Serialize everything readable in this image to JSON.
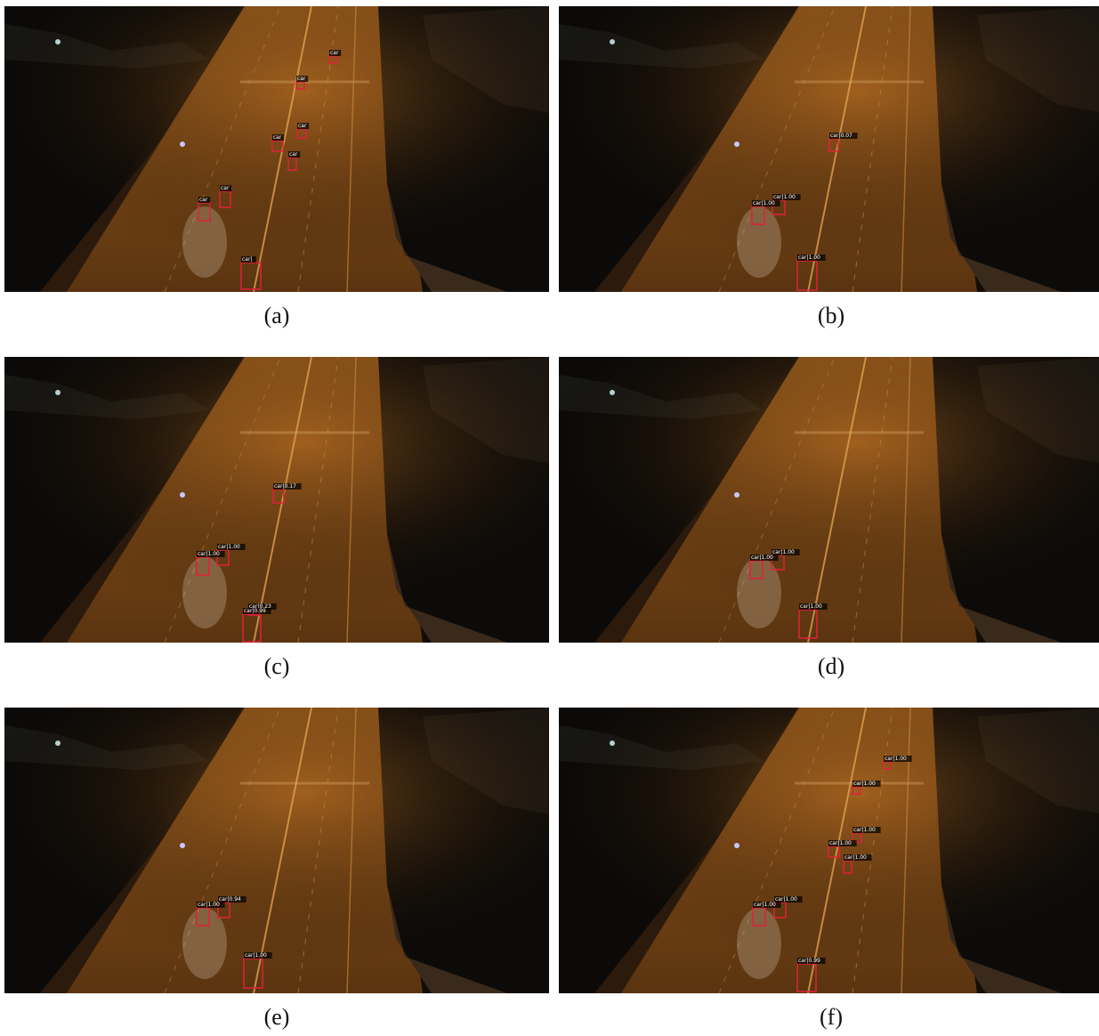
{
  "panels": [
    {
      "caption": "(a)",
      "detections": [
        "car",
        "car",
        "car",
        "car",
        "car",
        "car",
        "car",
        "car|"
      ]
    },
    {
      "caption": "(b)",
      "detections": [
        "car|0.07",
        "car|1.00",
        "car|1.00",
        "car|1.00"
      ]
    },
    {
      "caption": "(c)",
      "detections": [
        "car|0.17",
        "car|1.00",
        "car|1.00",
        "car|0.23",
        "car|0.99"
      ]
    },
    {
      "caption": "(d)",
      "detections": [
        "car|1.00",
        "car|1.00",
        "car|1.00"
      ]
    },
    {
      "caption": "(e)",
      "detections": [
        "car|0.94",
        "car|1.00",
        "car|1.00"
      ]
    },
    {
      "caption": "(f)",
      "detections": [
        "car|1.00",
        "car|1.00",
        "car|1.00",
        "car|1.00",
        "car|1.00",
        "car|1.00",
        "car|1.00",
        "car|0.99"
      ]
    }
  ]
}
